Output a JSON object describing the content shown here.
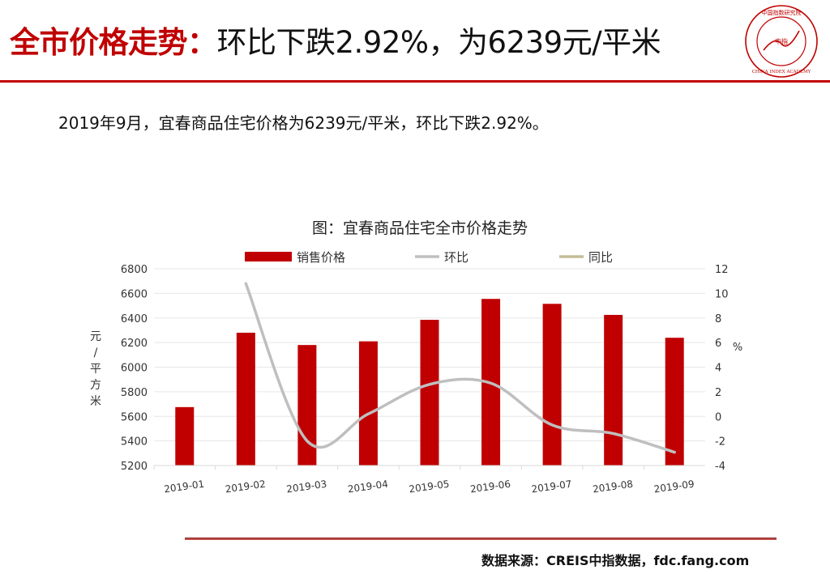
{
  "header": {
    "title_highlight": "全市价格走势：",
    "title_rest": "环比下跌2.92%，为6239元/平米"
  },
  "logo": {
    "seal_top_text": "中国指数研究院",
    "seal_center_text": "中指",
    "seal_bottom_text": "CHINA INDEX ACADEMY"
  },
  "summary": "2019年9月，宜春商品住宅价格为6239元/平米，环比下跌2.92%。",
  "footer": {
    "source": "数据来源：CREIS中指数据，fdc.fang.com"
  },
  "colors": {
    "accent": "#c00000",
    "bar": "#c00000",
    "mom_line": "#bfbfbf",
    "yoy_line": "#c4bd97"
  },
  "chart_data": {
    "type": "bar",
    "title": "图：宜春商品住宅全市价格走势",
    "categories": [
      "2019-01",
      "2019-02",
      "2019-03",
      "2019-04",
      "2019-05",
      "2019-06",
      "2019-07",
      "2019-08",
      "2019-09"
    ],
    "ylabel": "元/平方米",
    "ylabel_right": "%",
    "ylim": [
      5200,
      6800
    ],
    "ylim_right": [
      -4,
      12
    ],
    "yticks": [
      5200,
      5400,
      5600,
      5800,
      6000,
      6200,
      6400,
      6600,
      6800
    ],
    "yticks_right": [
      -4,
      -2,
      0,
      2,
      4,
      6,
      8,
      10,
      12
    ],
    "legend_position": "top",
    "series": [
      {
        "name": "销售价格",
        "type": "bar",
        "axis": "left",
        "values": [
          5675,
          6280,
          6180,
          6210,
          6385,
          6555,
          6515,
          6425,
          6239
        ]
      },
      {
        "name": "环比",
        "type": "line",
        "axis": "right",
        "values": [
          null,
          10.8,
          -2.0,
          0.2,
          2.6,
          2.7,
          -0.7,
          -1.4,
          -2.92
        ]
      },
      {
        "name": "同比",
        "type": "line",
        "axis": "right",
        "values": [
          null,
          null,
          null,
          null,
          null,
          null,
          null,
          null,
          null
        ]
      }
    ]
  }
}
